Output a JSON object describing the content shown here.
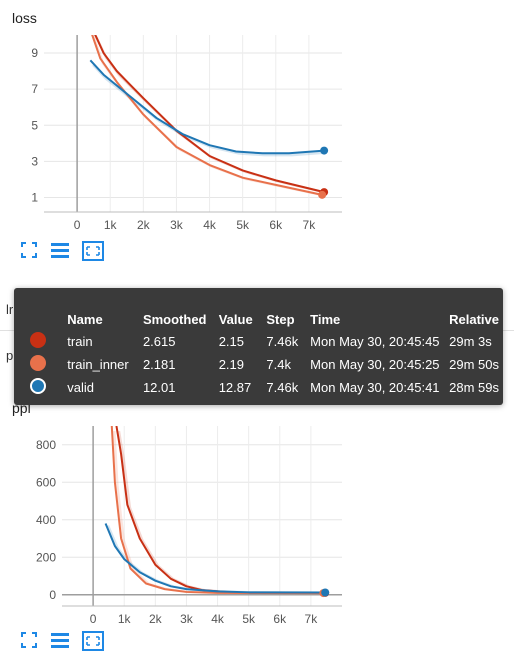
{
  "colors": {
    "train": "#c83014",
    "train_inner": "#e8714b",
    "valid": "#1f77b4",
    "icon": "#1e88e5"
  },
  "behind": {
    "label_lr": "lr",
    "label_ppl": "ppl"
  },
  "charts": [
    {
      "title": "loss",
      "icons": [
        "fullscreen-icon",
        "list-icon",
        "fit-domain-icon"
      ],
      "chart_data": {
        "type": "line",
        "xlim": [
          -1000,
          8000
        ],
        "ylim": [
          0.2,
          10.0
        ],
        "x_ticks": [
          0,
          1000,
          2000,
          3000,
          4000,
          5000,
          6000,
          7000
        ],
        "x_tick_labels": [
          "0",
          "1k",
          "2k",
          "3k",
          "4k",
          "5k",
          "6k",
          "7k"
        ],
        "y_ticks": [
          1,
          3,
          5,
          7,
          9
        ],
        "y_tick_labels": [
          "1",
          "3",
          "5",
          "7",
          "9"
        ],
        "series": [
          {
            "name": "train",
            "color": "#c83014",
            "x": [
              500,
              800,
              1200,
              2000,
              3000,
              4000,
              5000,
              6000,
              7460
            ],
            "y": [
              10.2,
              9.0,
              8.0,
              6.5,
              4.7,
              3.3,
              2.5,
              1.95,
              1.3
            ]
          },
          {
            "name": "train_inner",
            "color": "#e8714b",
            "x": [
              400,
              700,
              1200,
              2000,
              3000,
              4000,
              5000,
              6000,
              7400
            ],
            "y": [
              10.3,
              8.7,
              7.4,
              5.6,
              3.8,
              2.8,
              2.1,
              1.7,
              1.15
            ]
          },
          {
            "name": "valid",
            "color": "#1f77b4",
            "x": [
              400,
              800,
              1600,
              2400,
              3200,
              4000,
              4800,
              5600,
              6400,
              7460
            ],
            "y": [
              8.6,
              7.8,
              6.6,
              5.4,
              4.5,
              3.9,
              3.55,
              3.45,
              3.45,
              3.6
            ]
          }
        ]
      }
    },
    {
      "title": "ppl",
      "icons": [
        "fullscreen-icon",
        "list-icon",
        "fit-domain-icon"
      ],
      "chart_data": {
        "type": "line",
        "xlim": [
          -1000,
          8000
        ],
        "ylim": [
          -60,
          900
        ],
        "x_ticks": [
          0,
          1000,
          2000,
          3000,
          4000,
          5000,
          6000,
          7000
        ],
        "x_tick_labels": [
          "0",
          "1k",
          "2k",
          "3k",
          "4k",
          "5k",
          "6k",
          "7k"
        ],
        "y_ticks": [
          0,
          200,
          400,
          600,
          800
        ],
        "y_tick_labels": [
          "0",
          "200",
          "400",
          "600",
          "800"
        ],
        "series": [
          {
            "name": "train",
            "color": "#c83014",
            "x": [
              750,
              900,
              1100,
              1500,
              2000,
              2500,
              3000,
              3500,
              4500,
              7460
            ],
            "y": [
              900,
              750,
              480,
              300,
              160,
              85,
              45,
              25,
              12,
              10
            ]
          },
          {
            "name": "train_inner",
            "color": "#e8714b",
            "x": [
              600,
              700,
              900,
              1200,
              1700,
              2300,
              3000,
              4000,
              7400
            ],
            "y": [
              900,
              600,
              300,
              140,
              60,
              30,
              15,
              10,
              9
            ]
          },
          {
            "name": "valid",
            "color": "#1f77b4",
            "x": [
              400,
              700,
              1000,
              1500,
              2000,
              2500,
              3000,
              4000,
              5000,
              7460
            ],
            "y": [
              380,
              260,
              190,
              120,
              75,
              45,
              30,
              18,
              13,
              12
            ]
          }
        ]
      }
    }
  ],
  "tooltip": {
    "headers": [
      "Name",
      "Smoothed",
      "Value",
      "Step",
      "Time",
      "Relative"
    ],
    "rows": [
      {
        "name": "train",
        "color": "#c83014",
        "smoothed": "2.615",
        "value": "2.15",
        "step": "7.46k",
        "time": "Mon May 30, 20:45:45",
        "relative": "29m 3s"
      },
      {
        "name": "train_inner",
        "color": "#e8714b",
        "smoothed": "2.181",
        "value": "2.19",
        "step": "7.4k",
        "time": "Mon May 30, 20:45:25",
        "relative": "29m 50s"
      },
      {
        "name": "valid",
        "color": "#1f77b4",
        "smoothed": "12.01",
        "value": "12.87",
        "step": "7.46k",
        "time": "Mon May 30, 20:45:41",
        "relative": "28m 59s"
      }
    ]
  }
}
